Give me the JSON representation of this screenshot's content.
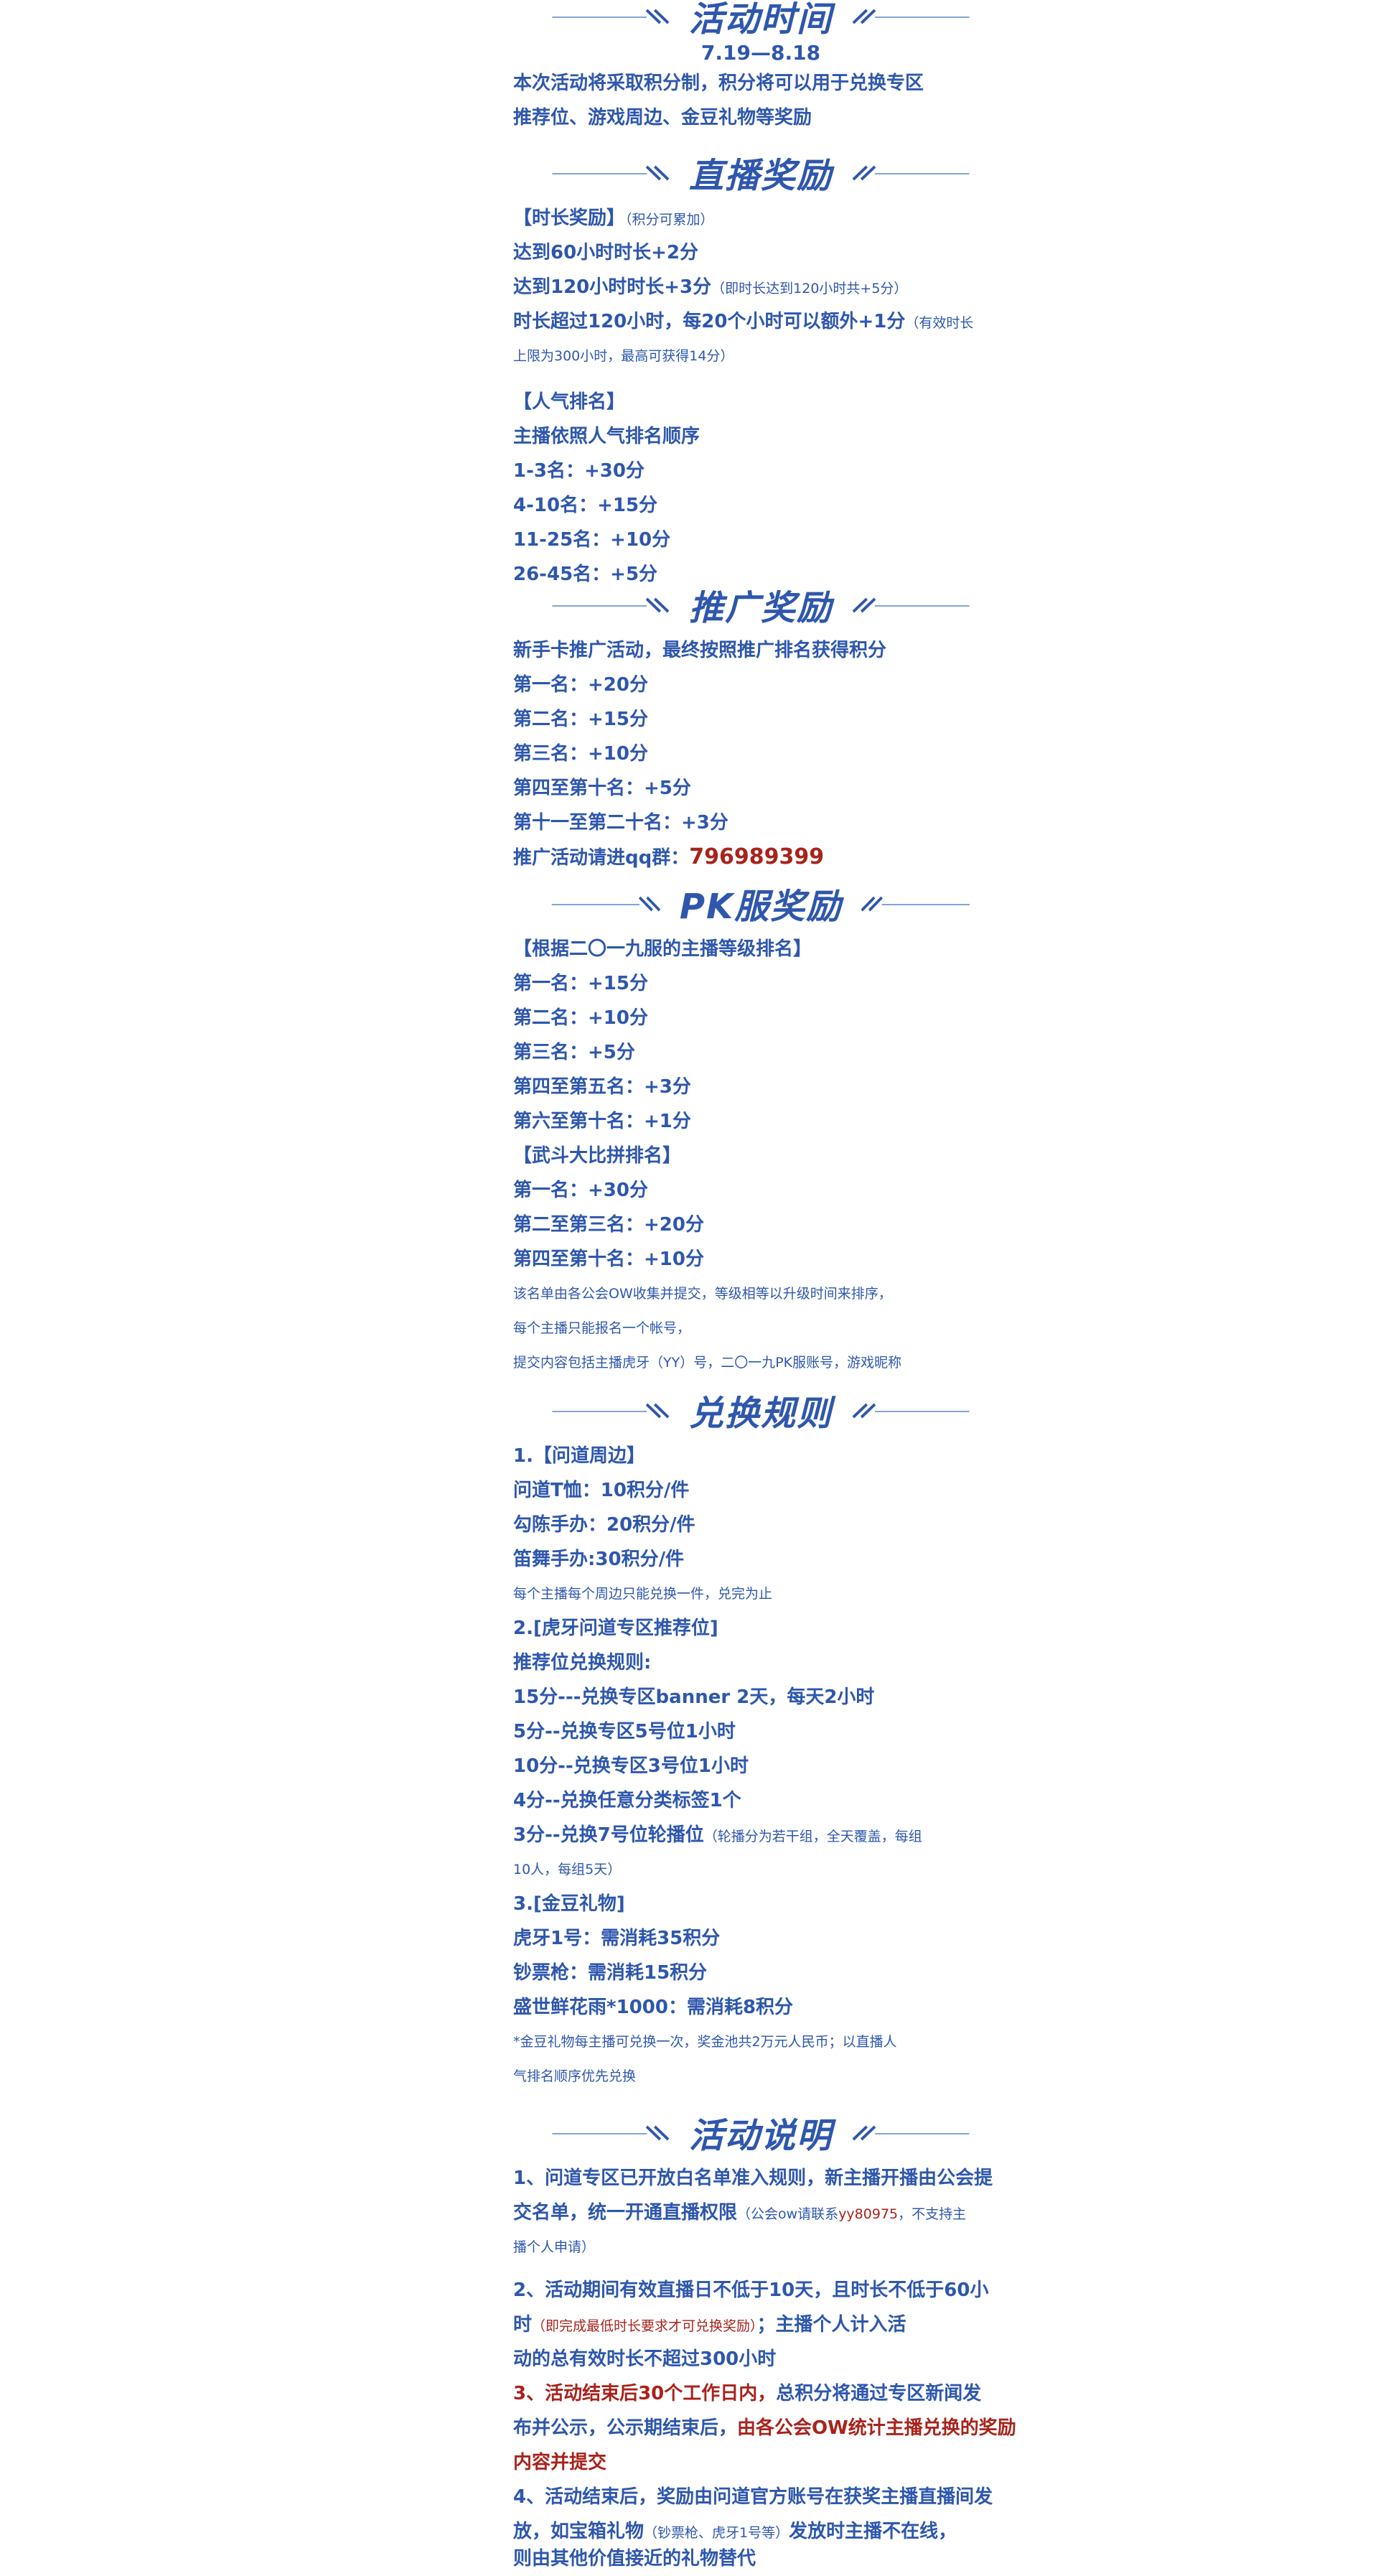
{
  "sections": {
    "time": "活动时间",
    "live": "直播奖励",
    "promo": "推广奖励",
    "pk": "PK服奖励",
    "exchange": "兑换规则",
    "notes": "活动说明"
  },
  "time": {
    "date": "7.19—8.18",
    "desc1": "本次活动将采取积分制，积分将可以用于兑换专区",
    "desc2": "推荐位、游戏周边、金豆礼物等奖励"
  },
  "live": {
    "duration_head": "【时长奖励】",
    "duration_note": "（积分可累加）",
    "d1": "达到60小时时长+2分",
    "d2": "达到120小时时长+3分",
    "d2_note": "（即时长达到120小时共+5分）",
    "d3": "时长超过120小时，每20个小时可以额外+1分",
    "d3_note": "（有效时长",
    "d3_note2": "上限为300小时，最高可获得14分）",
    "pop_head": "【人气排名】",
    "pop_desc": "主播依照人气排名顺序",
    "p1": "1-3名：+30分",
    "p2": "4-10名：+15分",
    "p3": "11-25名：+10分",
    "p4": "26-45名：+5分"
  },
  "promo": {
    "desc": "新手卡推广活动，最终按照推广排名获得积分",
    "r1": "第一名：+20分",
    "r2": "第二名：+15分",
    "r3": "第三名：+10分",
    "r4": "第四至第十名：+5分",
    "r5": "第十一至第二十名：+3分",
    "qq_label": "推广活动请进qq群：",
    "qq": "796989399"
  },
  "pk": {
    "head1": "【根据二〇一九服的主播等级排名】",
    "a1": "第一名：+15分",
    "a2": "第二名：+10分",
    "a3": "第三名：+5分",
    "a4": "第四至第五名：+3分",
    "a5": "第六至第十名：+1分",
    "head2": "【武斗大比拼排名】",
    "b1": "第一名：+30分",
    "b2": "第二至第三名：+20分",
    "b3": "第四至第十名：+10分",
    "n1": "该名单由各公会OW收集并提交，等级相等以升级时间来排序，",
    "n2": "每个主播只能报名一个帐号，",
    "n3": "提交内容包括主播虎牙（YY）号，二〇一九PK服账号，游戏昵称"
  },
  "exchange": {
    "h1": "1.【问道周边】",
    "e1": "问道T恤：10积分/件",
    "e2": "勾陈手办：20积分/件",
    "e3": "笛舞手办:30积分/件",
    "e_note": "每个主播每个周边只能兑换一件，兑完为止",
    "h2": "2.[虎牙问道专区推荐位]",
    "r_head": "推荐位兑换规则:",
    "r1": "15分---兑换专区banner 2天，每天2小时",
    "r2": "5分--兑换专区5号位1小时",
    "r3": "10分--兑换专区3号位1小时",
    "r4": "4分--兑换任意分类标签1个",
    "r5": "3分--兑换7号位轮播位",
    "r5_note": "（轮播分为若干组，全天覆盖，每组",
    "r5_note2": "10人，每组5天）",
    "h3": "3.[金豆礼物]",
    "g1": "虎牙1号：需消耗35积分",
    "g2": "钞票枪：需消耗15积分",
    "g3": "盛世鲜花雨*1000：需消耗8积分",
    "g_note": "*金豆礼物每主播可兑换一次，奖金池共2万元人民币；以直播人",
    "g_note2": "气排名顺序优先兑换"
  },
  "notes": {
    "n1a": "1、问道专区已开放白名单准入规则，新主播开播由公会提",
    "n1b": "交名单，统一开通直播权限",
    "n1b_note": "（公会ow请联系",
    "n1b_contact": "yy80975",
    "n1b_note2": "，不支持主",
    "n1c": "播个人申请）",
    "n2a": "2、活动期间有效直播日不低于10天，且时长不低于60小",
    "n2b": "时",
    "n2b_note": "（即完成最低时长要求才可兑换奖励）",
    "n2b_rest": "；主播个人计入活",
    "n2c": "动的总有效时长不超过300小时",
    "n3a_red": "3、活动结束后30个工作日内，",
    "n3a": "总积分将通过专区新闻发",
    "n3b": "布并公示，公示期结束后，",
    "n3b_red": "由各公会OW统计主播兑换的奖励",
    "n3c_red": "内容并提交",
    "n4a": "4、活动结束后，奖励由问道官方账号在获奖主播直播间发",
    "n4b": "放，如宝箱礼物",
    "n4b_note": "（钞票枪、虎牙1号等）",
    "n4b_rest": "发放时主播不在线，",
    "n4c": "则由其他价值接近的礼物替代"
  },
  "colors": {
    "primary": "#2e57ad",
    "accent_red": "#a8231c"
  }
}
